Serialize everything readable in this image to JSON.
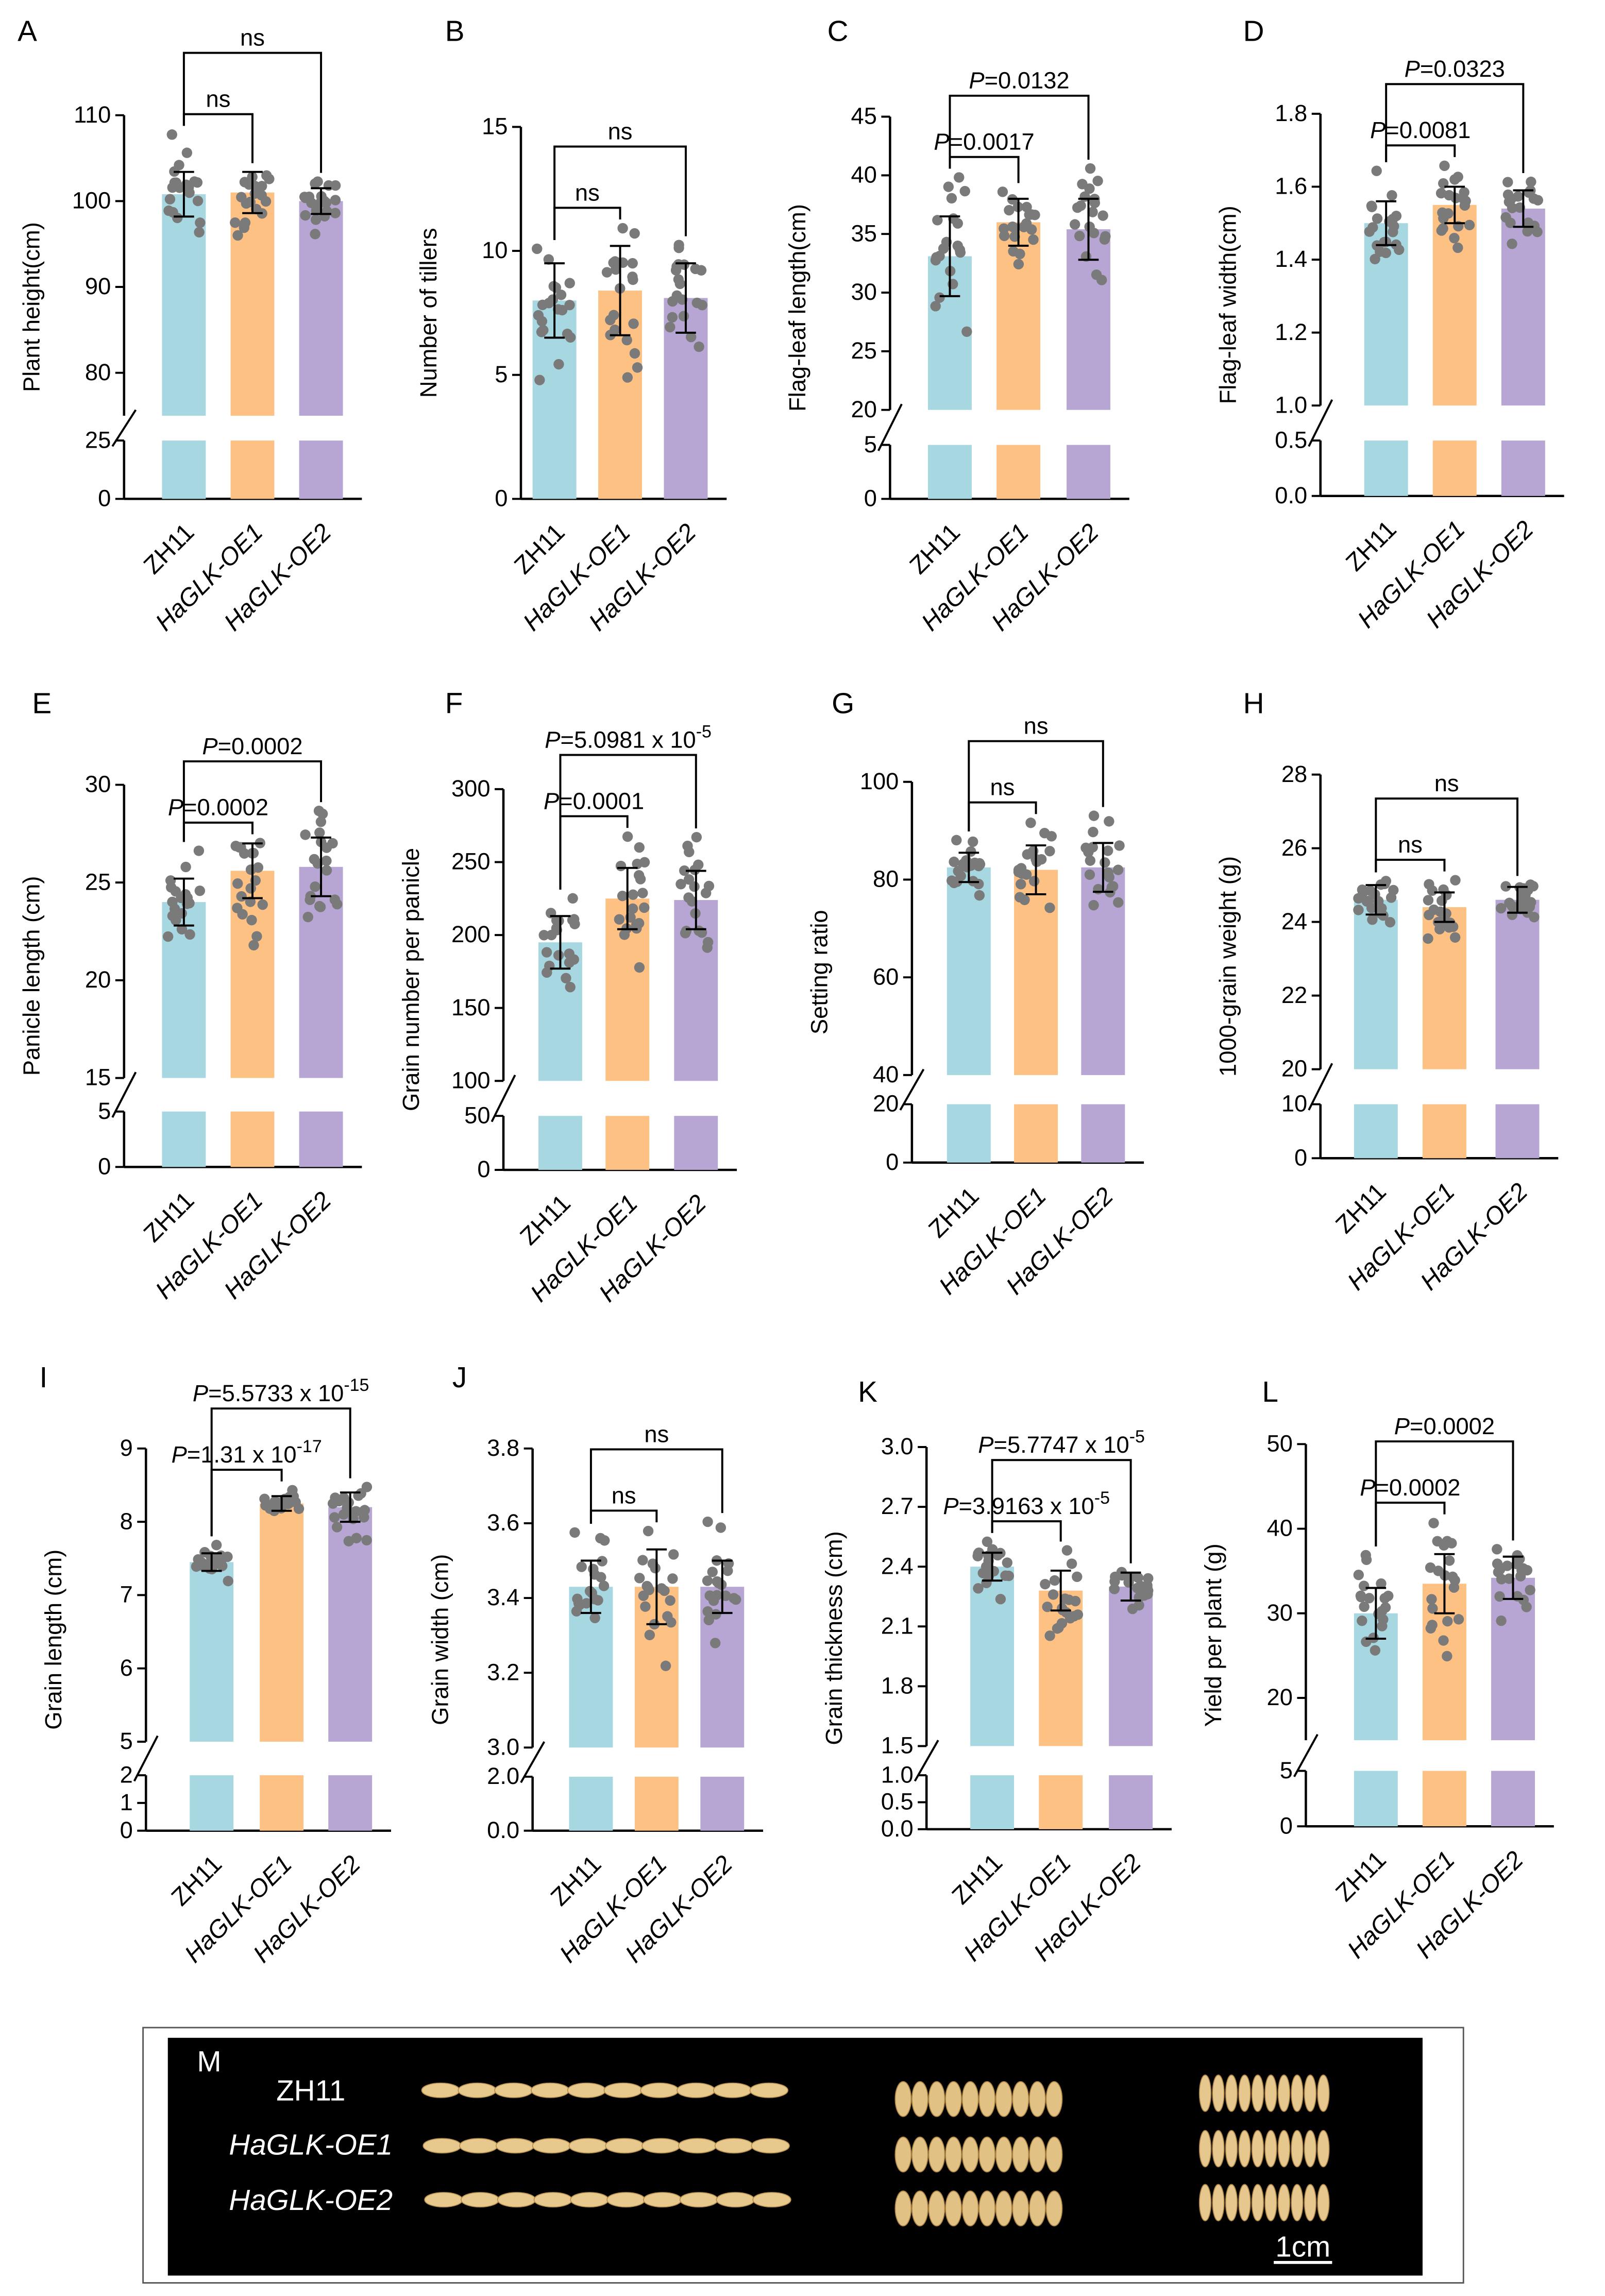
{
  "colors": {
    "ZH11": "#a7d8e2",
    "HaGLK-OE1": "#fec184",
    "HaGLK-OE2": "#b7a6d4",
    "dots": "#7a7a7a"
  },
  "chart_data": [
    {
      "letter": "A",
      "type": "bar",
      "ylabel": "Plant height(cm)",
      "categories": [
        "ZH11",
        "HaGLK-OE1",
        "HaGLK-OE2"
      ],
      "means": [
        100.8,
        101.0,
        100.0
      ],
      "sd": [
        2.6,
        2.4,
        1.5
      ],
      "n": 20,
      "lower": {
        "range": [
          0,
          25
        ],
        "ticks": [
          "0",
          "25"
        ]
      },
      "upper": {
        "range": [
          75,
          110
        ],
        "ticks": [
          "80",
          "90",
          "100",
          "110"
        ]
      },
      "comparisons": [
        {
          "text": "ns"
        },
        {
          "text": "ns"
        }
      ]
    },
    {
      "letter": "B",
      "type": "bar",
      "ylabel": "Number of tillers",
      "categories": [
        "ZH11",
        "HaGLK-OE1",
        "HaGLK-OE2"
      ],
      "means": [
        8.0,
        8.4,
        8.1
      ],
      "sd": [
        1.5,
        1.8,
        1.4
      ],
      "n": 20,
      "lower": null,
      "upper": {
        "range": [
          0,
          15
        ],
        "ticks": [
          "0",
          "5",
          "10",
          "15"
        ]
      },
      "comparisons": [
        {
          "text": "ns"
        },
        {
          "text": "ns"
        }
      ]
    },
    {
      "letter": "C",
      "type": "bar",
      "ylabel": "Flag-leaf length(cm)",
      "categories": [
        "ZH11",
        "HaGLK-OE1",
        "HaGLK-OE2"
      ],
      "means": [
        33.1,
        36.0,
        35.4
      ],
      "sd": [
        3.4,
        2.0,
        2.6
      ],
      "n": 20,
      "lower": {
        "range": [
          0,
          5
        ],
        "ticks": [
          "0",
          "5"
        ]
      },
      "upper": {
        "range": [
          20,
          45
        ],
        "ticks": [
          "20",
          "25",
          "30",
          "35",
          "40",
          "45"
        ]
      },
      "comparisons": [
        {
          "p": "P",
          "text": "=0.0017"
        },
        {
          "p": "P",
          "text": "=0.0132"
        }
      ]
    },
    {
      "letter": "D",
      "type": "bar",
      "ylabel": "Flag-leaf width(cm)",
      "categories": [
        "ZH11",
        "HaGLK-OE1",
        "HaGLK-OE2"
      ],
      "means": [
        1.5,
        1.55,
        1.54
      ],
      "sd": [
        0.06,
        0.05,
        0.05
      ],
      "n": 20,
      "lower": {
        "range": [
          0,
          0.5
        ],
        "ticks": [
          "0.0",
          "0.5"
        ]
      },
      "upper": {
        "range": [
          1.0,
          1.8
        ],
        "ticks": [
          "1.0",
          "1.2",
          "1.4",
          "1.6",
          "1.8"
        ]
      },
      "comparisons": [
        {
          "p": "P",
          "text": "=0.0081"
        },
        {
          "p": "P",
          "text": "=0.0323"
        }
      ]
    },
    {
      "letter": "E",
      "type": "bar",
      "ylabel": "Panicle length (cm)",
      "categories": [
        "ZH11",
        "HaGLK-OE1",
        "HaGLK-OE2"
      ],
      "means": [
        24.0,
        25.6,
        25.8
      ],
      "sd": [
        1.2,
        1.4,
        1.5
      ],
      "n": 20,
      "lower": {
        "range": [
          0,
          5
        ],
        "ticks": [
          "0",
          "5"
        ]
      },
      "upper": {
        "range": [
          15,
          30
        ],
        "ticks": [
          "15",
          "20",
          "25",
          "30"
        ]
      },
      "comparisons": [
        {
          "p": "P",
          "text": "=0.0002"
        },
        {
          "p": "P",
          "text": "=0.0002"
        }
      ]
    },
    {
      "letter": "F",
      "type": "bar",
      "ylabel": "Grain number per panicle",
      "categories": [
        "ZH11",
        "HaGLK-OE1",
        "HaGLK-OE2"
      ],
      "means": [
        195,
        225,
        224
      ],
      "sd": [
        18,
        21,
        20
      ],
      "n": 20,
      "lower": {
        "range": [
          0,
          50
        ],
        "ticks": [
          "0",
          "50"
        ]
      },
      "upper": {
        "range": [
          100,
          300
        ],
        "ticks": [
          "100",
          "150",
          "200",
          "250",
          "300"
        ]
      },
      "comparisons": [
        {
          "p": "P",
          "text": "=0.0001"
        },
        {
          "p": "P",
          "text": "=5.0981 x 10",
          "exp": "-5"
        }
      ]
    },
    {
      "letter": "G",
      "type": "bar",
      "ylabel": "Setting ratio",
      "categories": [
        "ZH11",
        "HaGLK-OE1",
        "HaGLK-OE2"
      ],
      "means": [
        82.5,
        82.0,
        82.5
      ],
      "sd": [
        3.0,
        5.0,
        5.0
      ],
      "n": 20,
      "lower": {
        "range": [
          0,
          20
        ],
        "ticks": [
          "0",
          "20"
        ]
      },
      "upper": {
        "range": [
          40,
          100
        ],
        "ticks": [
          "40",
          "60",
          "80",
          "100"
        ]
      },
      "comparisons": [
        {
          "text": "ns"
        },
        {
          "text": "ns"
        }
      ]
    },
    {
      "letter": "H",
      "type": "bar",
      "ylabel": "1000-grain weight (g)",
      "categories": [
        "ZH11",
        "HaGLK-OE1",
        "HaGLK-OE2"
      ],
      "means": [
        24.6,
        24.4,
        24.6
      ],
      "sd": [
        0.4,
        0.4,
        0.35
      ],
      "n": 20,
      "lower": {
        "range": [
          0,
          10
        ],
        "ticks": [
          "0",
          "10"
        ]
      },
      "upper": {
        "range": [
          20,
          28
        ],
        "ticks": [
          "20",
          "22",
          "24",
          "26",
          "28"
        ]
      },
      "comparisons": [
        {
          "text": "ns"
        },
        {
          "text": "ns"
        }
      ]
    },
    {
      "letter": "I",
      "type": "bar",
      "ylabel": "Grain length (cm)",
      "categories": [
        "ZH11",
        "HaGLK-OE1",
        "HaGLK-OE2"
      ],
      "means": [
        7.45,
        8.25,
        8.2
      ],
      "sd": [
        0.12,
        0.1,
        0.2
      ],
      "n": 20,
      "lower": {
        "range": [
          0,
          2
        ],
        "ticks": [
          "0",
          "1",
          "2"
        ]
      },
      "upper": {
        "range": [
          5,
          9
        ],
        "ticks": [
          "5",
          "6",
          "7",
          "8",
          "9"
        ]
      },
      "comparisons": [
        {
          "p": "P",
          "text": "=1.31 x 10",
          "exp": "-17"
        },
        {
          "p": "P",
          "text": "=5.5733 x 10",
          "exp": "-15"
        }
      ]
    },
    {
      "letter": "J",
      "type": "bar",
      "ylabel": "Grain width (cm)",
      "categories": [
        "ZH11",
        "HaGLK-OE1",
        "HaGLK-OE2"
      ],
      "means": [
        3.43,
        3.43,
        3.43
      ],
      "sd": [
        0.07,
        0.1,
        0.07
      ],
      "n": 20,
      "lower": {
        "range": [
          0,
          2
        ],
        "ticks": [
          "0.0",
          "2.0"
        ]
      },
      "upper": {
        "range": [
          3.0,
          3.8
        ],
        "ticks": [
          "3.0",
          "3.2",
          "3.4",
          "3.6",
          "3.8"
        ]
      },
      "comparisons": [
        {
          "text": "ns"
        },
        {
          "text": "ns"
        }
      ]
    },
    {
      "letter": "K",
      "type": "bar",
      "ylabel": "Grain thickness (cm)",
      "categories": [
        "ZH11",
        "HaGLK-OE1",
        "HaGLK-OE2"
      ],
      "means": [
        2.4,
        2.28,
        2.3
      ],
      "sd": [
        0.07,
        0.1,
        0.07
      ],
      "n": 20,
      "lower": {
        "range": [
          0,
          1
        ],
        "ticks": [
          "0.0",
          "0.5",
          "1.0"
        ]
      },
      "upper": {
        "range": [
          1.5,
          3.0
        ],
        "ticks": [
          "1.5",
          "1.8",
          "2.1",
          "2.4",
          "2.7",
          "3.0"
        ]
      },
      "comparisons": [
        {
          "p": "P",
          "text": "=3.9163 x 10",
          "exp": "-5"
        },
        {
          "p": "P",
          "text": "=5.7747 x 10",
          "exp": "-5"
        }
      ]
    },
    {
      "letter": "L",
      "type": "bar",
      "ylabel": "Yield per plant (g)",
      "categories": [
        "ZH11",
        "HaGLK-OE1",
        "HaGLK-OE2"
      ],
      "means": [
        30.0,
        33.5,
        34.2
      ],
      "sd": [
        3.0,
        3.5,
        2.5
      ],
      "n": 20,
      "lower": {
        "range": [
          0,
          5
        ],
        "ticks": [
          "0",
          "5"
        ]
      },
      "upper": {
        "range": [
          15,
          50
        ],
        "ticks": [
          "20",
          "30",
          "40",
          "50"
        ]
      },
      "comparisons": [
        {
          "p": "P",
          "text": "=0.0002"
        },
        {
          "p": "P",
          "text": "=0.0002"
        }
      ]
    }
  ],
  "panel_m": {
    "letter": "M",
    "rows": [
      "ZH11",
      "HaGLK-OE1",
      "HaGLK-OE2"
    ],
    "scale_bar": "1cm"
  }
}
